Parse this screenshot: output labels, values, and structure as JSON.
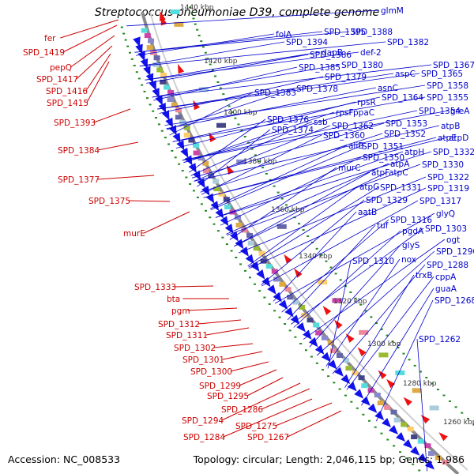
{
  "title": "Streptococcus pneumoniae D39, complete genome",
  "footer": {
    "accession": "Accession: NC_008533",
    "summary": "Topology: circular; Length: 2,046,115 bp; Genes: 1,986"
  },
  "colors": {
    "red_label": "#cc0000",
    "blue_label": "#0000cc",
    "backbone": "#999999",
    "forward_arrows": "#ee1111",
    "reverse_arrows": "#1111ee",
    "dots": "#228822"
  },
  "scale_labels": [
    "1440 kbp",
    "1420 kbp",
    "1400 kbp",
    "1380 kbp",
    "1360 kbp",
    "1340 kbp",
    "1320 kbp",
    "1300 kbp",
    "1280 kbp",
    "1260 kbp"
  ],
  "red_genes": [
    "fer",
    "SPD_1419",
    "pepQ",
    "SPD_1417",
    "SPD_1416",
    "SPD_1415",
    "SPD_1393",
    "SPD_1384",
    "SPD_1377",
    "SPD_1375",
    "murE",
    "SPD_1333",
    "bta",
    "pgm",
    "SPD_1312",
    "SPD_1311",
    "SPD_1302",
    "SPD_1301",
    "SPD_1300",
    "SPD_1299",
    "SPD_1295",
    "SPD_1294",
    "SPD_1286",
    "SPD_1284",
    "SPD_1275",
    "SPD_1267"
  ],
  "blue_genes": [
    "glmM",
    "folA",
    "SPD_1395",
    "SPD_1388",
    "SPD_1394",
    "SPD_1382",
    "dapB",
    "def-2",
    "SPD_1386",
    "SPD_1385",
    "SPD_1380",
    "SPD_1379",
    "SPD_1383",
    "SPD_1378",
    "SPD_1367",
    "aspC",
    "SPD_1365",
    "asnC",
    "SPD_1358",
    "rpsR",
    "SPD_1364",
    "SPD_1355",
    "SPD_1376",
    "rpsF",
    "ppaC",
    "SPD_1354",
    "greA",
    "SPD_1374",
    "ssb",
    "SPD_1362",
    "SPD_1353",
    "SPD_1360",
    "SPD_1352",
    "atpB",
    "aliB",
    "SPD_1351",
    "atpE",
    "atpD",
    "atpH",
    "SPD_1332",
    "SPD_1350",
    "murC",
    "atpA",
    "SPD_1330",
    "atpF",
    "atpC",
    "SPD_1322",
    "atpG",
    "SPD_1331",
    "SPD_1319",
    "SPD_1329",
    "SPD_1317",
    "aatB",
    "glyQ",
    "SPD_1316",
    "tuf",
    "SPD_1303",
    "pgdA",
    "ogt",
    "glyS",
    "SPD_1290",
    "SPD_1310",
    "nox",
    "SPD_1288",
    "trxB",
    "cppA",
    "guaA",
    "SPD_1268",
    "SPD_1262"
  ]
}
